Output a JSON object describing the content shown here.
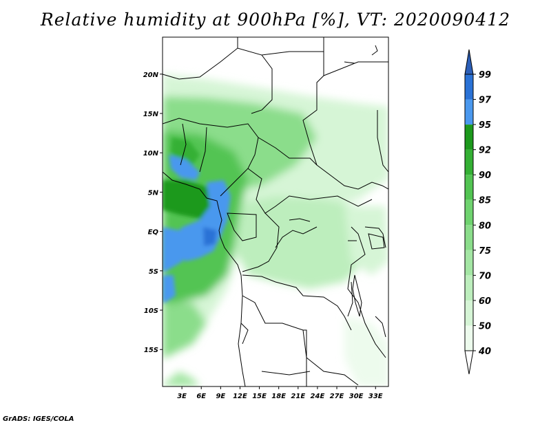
{
  "title": "Relative humidity at 900hPa [%], VT: 2020090412",
  "credit": "GrADS: IGES/COLA",
  "map": {
    "lat_labels": [
      "20N",
      "15N",
      "10N",
      "5N",
      "EQ",
      "5S",
      "10S",
      "15S"
    ],
    "lat_values": [
      20,
      15,
      10,
      5,
      0,
      -5,
      -10,
      -15
    ],
    "lon_labels": [
      "3E",
      "6E",
      "9E",
      "12E",
      "15E",
      "18E",
      "21E",
      "24E",
      "27E",
      "30E",
      "33E"
    ],
    "lon_values": [
      3,
      6,
      9,
      12,
      15,
      18,
      21,
      24,
      27,
      30,
      33
    ],
    "lon_range": [
      0,
      35
    ],
    "lat_range": [
      -19.7,
      24.7
    ]
  },
  "colorbar": {
    "levels": [
      "40",
      "50",
      "60",
      "70",
      "75",
      "80",
      "85",
      "90",
      "92",
      "95",
      "97",
      "99"
    ],
    "colors": [
      "#ffffff",
      "#edfbed",
      "#d6f5d6",
      "#bdeebd",
      "#a4e6a4",
      "#8bdd8b",
      "#6fd36f",
      "#52c452",
      "#34b034",
      "#1c991c",
      "#4a98ee",
      "#2a72d6",
      "#2c5fb8"
    ]
  }
}
